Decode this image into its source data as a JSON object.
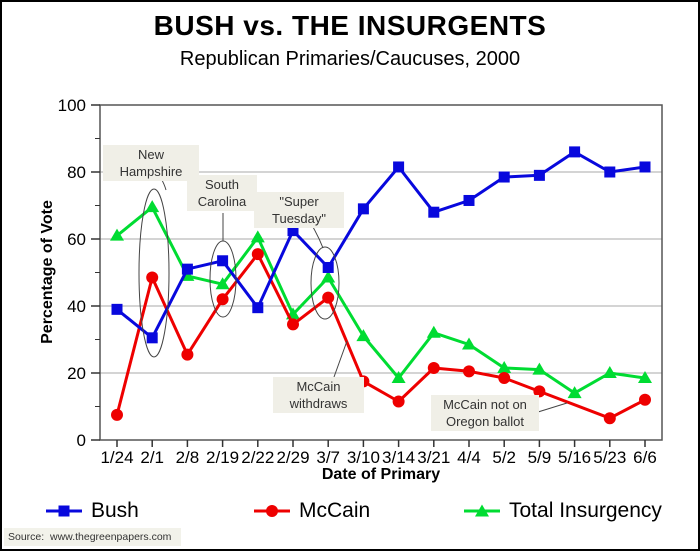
{
  "source_note": "Source:  www.thegreenpapers.com",
  "chart_data": {
    "type": "line",
    "title": "BUSH vs. THE INSURGENTS",
    "subtitle": "Republican Primaries/Caucuses, 2000",
    "xlabel": "Date of Primary",
    "ylabel": "Percentage of Vote",
    "ylim": [
      0,
      100
    ],
    "yticks": [
      0,
      20,
      40,
      60,
      80,
      100
    ],
    "yticks_minor": [
      10,
      30,
      50,
      70,
      90
    ],
    "grid": true,
    "legend_position": "bottom",
    "categories": [
      "1/24",
      "2/1",
      "2/8",
      "2/19",
      "2/22",
      "2/29",
      "3/7",
      "3/10",
      "3/14",
      "3/21",
      "4/4",
      "5/2",
      "5/9",
      "5/16",
      "5/23",
      "6/6"
    ],
    "series": [
      {
        "name": "Bush",
        "marker": "square",
        "color": "#0808dd",
        "values": [
          39,
          30.5,
          51,
          53.5,
          39.5,
          62.5,
          51.5,
          69,
          81.5,
          68,
          71.5,
          78.5,
          79,
          86,
          80,
          81.5
        ]
      },
      {
        "name": "McCain",
        "marker": "circle",
        "color": "#ee0000",
        "values": [
          7.5,
          48.5,
          25.5,
          42,
          55.5,
          34.5,
          42.5,
          17.5,
          11.5,
          21.5,
          20.5,
          18.5,
          14.5,
          null,
          6.5,
          12
        ]
      },
      {
        "name": "Total Insurgency",
        "marker": "triangle",
        "color": "#00dc32",
        "values": [
          61,
          69.5,
          49,
          46.5,
          60.5,
          37.5,
          48.5,
          31,
          18.5,
          32,
          28.5,
          21.5,
          21,
          14,
          20,
          18.5
        ]
      }
    ],
    "annotations": [
      {
        "id": "new-hampshire",
        "lines": [
          "New Hampshire"
        ],
        "target": "2/1",
        "style": "circled"
      },
      {
        "id": "south-carolina",
        "lines": [
          "South",
          "Carolina"
        ],
        "target": "2/19",
        "style": "circled"
      },
      {
        "id": "super-tuesday",
        "lines": [
          "\"Super Tuesday\""
        ],
        "target": "3/7",
        "style": "circled"
      },
      {
        "id": "mccain-withdraws",
        "lines": [
          "McCain",
          "withdraws"
        ],
        "target": "3/7",
        "style": "arrow"
      },
      {
        "id": "mccain-oregon",
        "lines": [
          "McCain not on",
          "Oregon ballot"
        ],
        "target": "5/16",
        "style": "arrow"
      }
    ]
  }
}
